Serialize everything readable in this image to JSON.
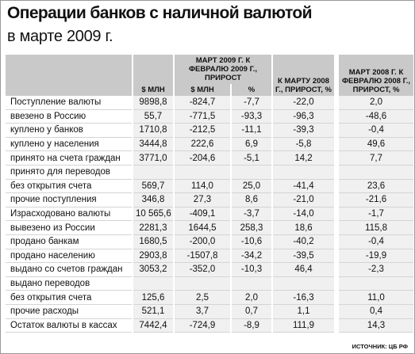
{
  "header": {
    "title": "Операции банков с наличной валютой",
    "subtitle": "в марте 2009 г."
  },
  "table": {
    "columns": {
      "usd_mln": "$ МЛН",
      "group_2009": "МАРТ 2009 Г. К ФЕВРАЛЮ 2009 Г., ПРИРОСТ",
      "group_usd_mln": "$ МЛН",
      "group_pct": "%",
      "vs_march_2008": "К МАРТУ 2008 Г., ПРИРОСТ, %",
      "march_2008": "МАРТ 2008 Г. К ФЕВРАЛЮ 2008 Г., ПРИРОСТ, %"
    },
    "rows": [
      [
        "Поступление валюты",
        "9898,8",
        "-824,7",
        "-7,7",
        "-22,0",
        "2,0"
      ],
      [
        "ввезено в Россию",
        "55,7",
        "-771,5",
        "-93,3",
        "-96,3",
        "-48,6"
      ],
      [
        "куплено у банков",
        "1710,8",
        "-212,5",
        "-11,1",
        "-39,3",
        "-0,4"
      ],
      [
        "куплено у населения",
        "3444,8",
        "222,6",
        "6,9",
        "-5,8",
        "49,6"
      ],
      [
        "принято на счета граждан",
        "3771,0",
        "-204,6",
        "-5,1",
        "14,2",
        "7,7"
      ],
      [
        "принято для переводов"
      ],
      [
        "без открытия счета",
        "569,7",
        "114,0",
        "25,0",
        "-41,4",
        "23,6"
      ],
      [
        "прочие поступления",
        "346,8",
        "27,3",
        "8,6",
        "-21,0",
        "-21,6"
      ],
      [
        "Израсходовано валюты",
        "10 565,6",
        "-409,1",
        "-3,7",
        "-14,0",
        "-1,7"
      ],
      [
        "вывезено из России",
        "2281,3",
        "1644,5",
        "258,3",
        "18,6",
        "115,8"
      ],
      [
        "продано банкам",
        "1680,5",
        "-200,0",
        "-10,6",
        "-40,2",
        "-0,4"
      ],
      [
        "продано населению",
        "2903,8",
        "-1507,8",
        "-34,2",
        "-39,5",
        "-19,9"
      ],
      [
        "выдано со счетов граждан",
        "3053,2",
        "-352,0",
        "-10,3",
        "46,4",
        "-2,3"
      ],
      [
        "выдано переводов"
      ],
      [
        "без открытия счета",
        "125,6",
        "2,5",
        "2,0",
        "-16,3",
        "11,0"
      ],
      [
        "прочие расходы",
        "521,1",
        "3,7",
        "0,7",
        "1,1",
        "0,4"
      ],
      [
        "Остаток валюты в кассах",
        "7442,4",
        "-724,9",
        "-8,9",
        "111,9",
        "14,3"
      ]
    ]
  },
  "footer": {
    "source": "ИСТОЧНИК: ЦБ РФ"
  }
}
